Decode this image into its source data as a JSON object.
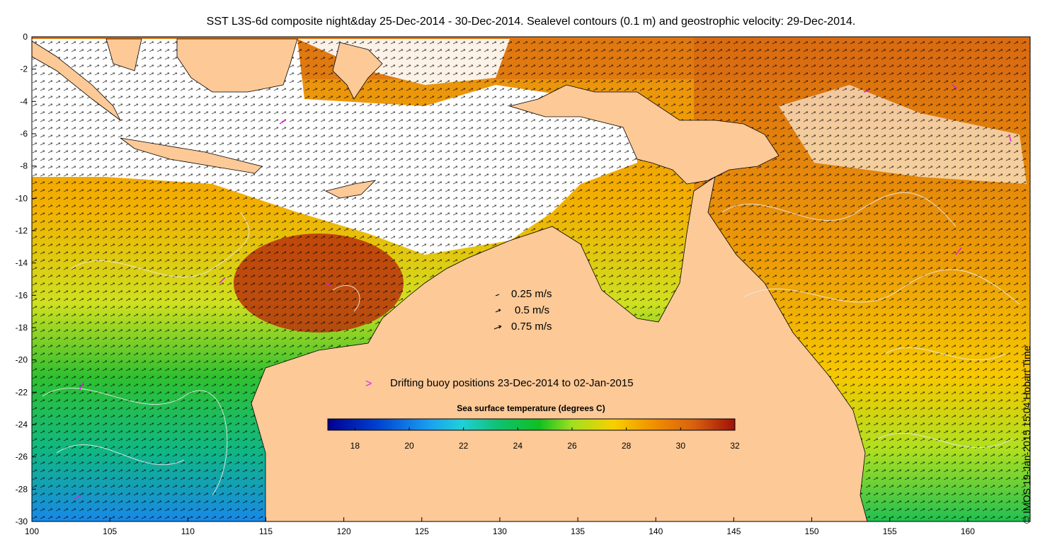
{
  "title": "SST L3S-6d composite night&day 25-Dec-2014 - 30-Dec-2014. Sealevel contours (0.1 m) and geostrophic velocity: 29-Dec-2014.",
  "credit": "© IMOS 19-Jan-2015 15:04 Hobart Time",
  "velocity_legend": [
    {
      "label": "0.25 m/s",
      "speed": 0.25
    },
    {
      "label": "0.5 m/s",
      "speed": 0.5
    },
    {
      "label": "0.75 m/s",
      "speed": 0.75
    }
  ],
  "buoy_legend": {
    "symbol": ">",
    "label": "Drifting buoy positions 23-Dec-2014 to 02-Jan-2015"
  },
  "colorbar": {
    "title": "Sea surface temperature (degrees C)",
    "range": [
      17,
      32
    ],
    "ticks": [
      "18",
      "20",
      "22",
      "24",
      "26",
      "28",
      "30",
      "32"
    ]
  },
  "map": {
    "lon_range": [
      100,
      164
    ],
    "lat_range": [
      -30,
      0
    ],
    "x_ticks": [
      "100",
      "105",
      "110",
      "115",
      "120",
      "125",
      "130",
      "135",
      "140",
      "145",
      "150",
      "155",
      "160"
    ],
    "y_ticks": [
      "0",
      "-2",
      "-4",
      "-6",
      "-8",
      "-10",
      "-12",
      "-14",
      "-16",
      "-18",
      "-20",
      "-22",
      "-24",
      "-26",
      "-28",
      "-30"
    ],
    "colors": {
      "land": "#fcc997",
      "cloud": "#ffffff",
      "contour": "#dddddd",
      "buoy": "#e020e0"
    }
  }
}
